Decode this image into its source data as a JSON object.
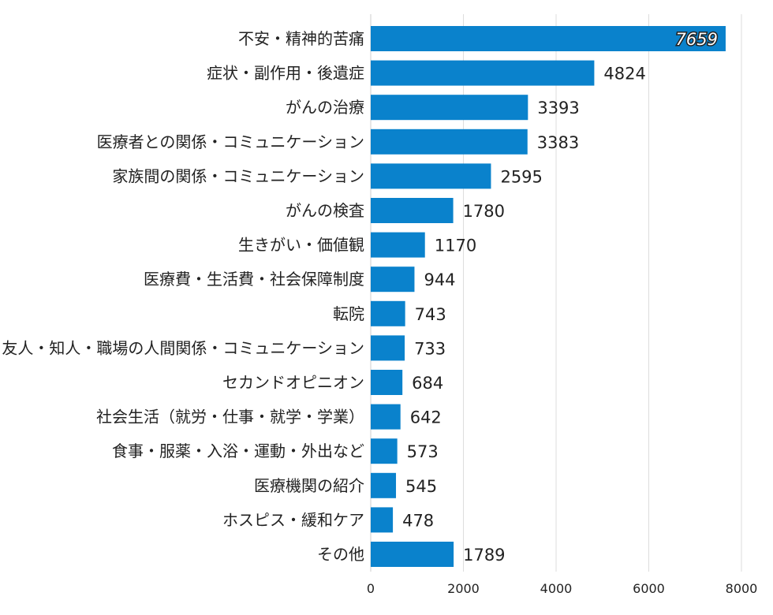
{
  "chart_data": {
    "type": "bar",
    "orientation": "horizontal",
    "title": "",
    "xlabel": "",
    "ylabel": "",
    "xlim": [
      0,
      8000
    ],
    "x_ticks": [
      0,
      2000,
      4000,
      6000,
      8000
    ],
    "grid": true,
    "bar_color": "#0a82cc",
    "categories": [
      "不安・精神的苦痛",
      "症状・副作用・後遺症",
      "がんの治療",
      "医療者との関係・コミュニケーション",
      "家族間の関係・コミュニケーション",
      "がんの検査",
      "生きがい・価値観",
      "医療費・生活費・社会保障制度",
      "転院",
      "友人・知人・職場の人間関係・コミュニケーション",
      "セカンドオピニオン",
      "社会生活（就労・仕事・就学・学業）",
      "食事・服薬・入浴・運動・外出など",
      "医療機関の紹介",
      "ホスピス・緩和ケア",
      "その他"
    ],
    "values": [
      7659,
      4824,
      3393,
      3383,
      2595,
      1780,
      1170,
      944,
      743,
      733,
      684,
      642,
      573,
      545,
      478,
      1789
    ]
  }
}
